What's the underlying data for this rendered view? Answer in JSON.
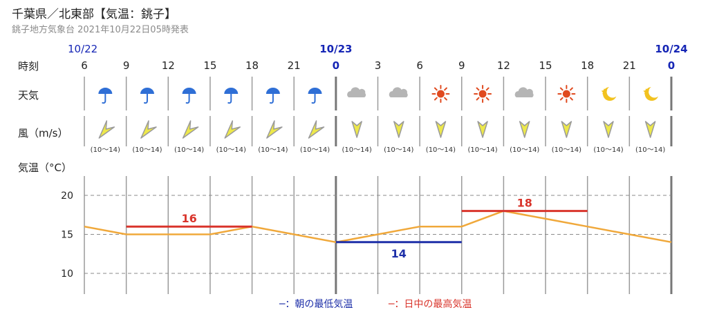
{
  "header": {
    "title": "千葉県／北東部【気温：銚子】",
    "subtitle": "銚子地方気象台 2021年10月22日05時発表"
  },
  "row_labels": {
    "time": "時刻",
    "weather": "天気",
    "wind": "風（m/s）",
    "temp": "気温（°C）"
  },
  "dates": [
    "10/22",
    "10/23",
    "10/24"
  ],
  "hours": [
    "6",
    "9",
    "12",
    "15",
    "18",
    "21",
    "0",
    "3",
    "6",
    "9",
    "12",
    "15",
    "18",
    "21",
    "0"
  ],
  "weather_icons": [
    "umbrella-icon",
    "umbrella-icon",
    "umbrella-icon",
    "umbrella-icon",
    "umbrella-icon",
    "umbrella-icon",
    "cloud-icon",
    "cloud-icon",
    "sun-icon",
    "sun-icon",
    "cloud-icon",
    "sun-icon",
    "moon-icon",
    "moon-icon"
  ],
  "wind": {
    "speeds": [
      "(10〜14)",
      "(10〜14)",
      "(10〜14)",
      "(10〜14)",
      "(10〜14)",
      "(10〜14)",
      "(10〜14)",
      "(10〜14)",
      "(10〜14)",
      "(10〜14)",
      "(10〜14)",
      "(10〜14)",
      "(10〜14)",
      "(10〜14)"
    ],
    "directions": [
      "southwest",
      "southwest",
      "southwest",
      "southwest",
      "southwest",
      "southwest",
      "north",
      "north",
      "north",
      "north",
      "north",
      "north",
      "north",
      "north"
    ]
  },
  "legend": {
    "min_label": "─：朝の最低気温",
    "max_label": "─：日中の最高気温"
  },
  "colors": {
    "line": "#f0a83a",
    "max": "#d9342b",
    "min": "#1d2fa8",
    "date": "#1525b5",
    "umbrella": "#2f6fd6",
    "sun": "#e04a1f",
    "moon": "#f2c21f",
    "cloud": "#b5b5b5",
    "wind_fill": "#ede84a"
  },
  "chart_data": {
    "type": "line",
    "x": [
      "10/22 6",
      "9",
      "12",
      "15",
      "18",
      "21",
      "10/23 0",
      "3",
      "6",
      "9",
      "12",
      "15",
      "18",
      "21",
      "10/24 0"
    ],
    "ylim": [
      7,
      22
    ],
    "yticks": [
      10,
      15,
      20
    ],
    "series": [
      {
        "values": [
          16,
          15,
          15,
          15,
          16,
          15,
          14,
          15,
          16,
          16,
          18,
          17,
          16,
          15,
          14
        ]
      }
    ],
    "max_temp": {
      "value": 16,
      "label": "16",
      "from_index": 1,
      "to_index": 4
    },
    "max_temp_2": {
      "value": 18,
      "label": "18",
      "from_index": 9,
      "to_index": 12
    },
    "min_temp": {
      "value": 14,
      "label": "14",
      "from_index": 6,
      "to_index": 9
    }
  }
}
